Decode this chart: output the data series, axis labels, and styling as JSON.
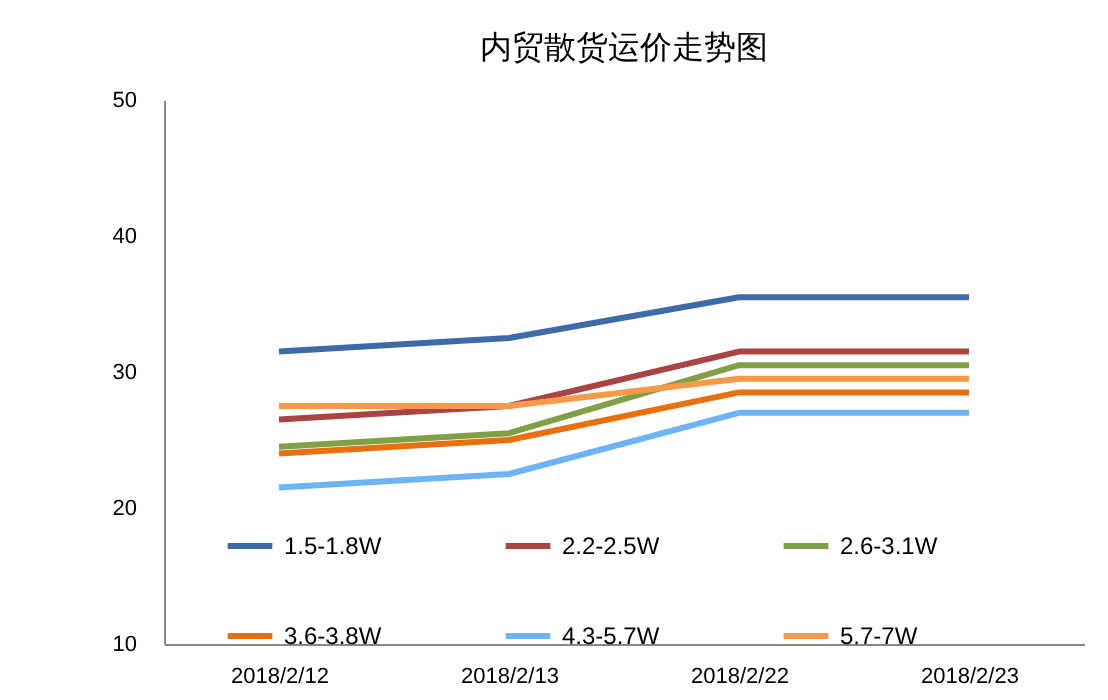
{
  "chart_data": {
    "type": "line",
    "title": "内贸散货运价走势图",
    "categories": [
      "2018/2/12",
      "2018/2/13",
      "2018/2/22",
      "2018/2/23"
    ],
    "series": [
      {
        "name": "1.5-1.8W",
        "color": "#3e6aa8",
        "values": [
          31.5,
          32.5,
          35.5,
          35.5
        ]
      },
      {
        "name": "2.2-2.5W",
        "color": "#a94442",
        "values": [
          26.5,
          27.5,
          31.5,
          31.5
        ]
      },
      {
        "name": "2.6-3.1W",
        "color": "#7fa045",
        "values": [
          24.5,
          25.5,
          30.5,
          30.5
        ]
      },
      {
        "name": "3.6-3.8W",
        "color": "#e8700e",
        "values": [
          24,
          25,
          28.5,
          28.5
        ]
      },
      {
        "name": "4.3-5.7W",
        "color": "#6cb4f5",
        "values": [
          21.5,
          22.5,
          27,
          27
        ]
      },
      {
        "name": "5.7-7W",
        "color": "#f59a4a",
        "values": [
          27.5,
          27.5,
          29.5,
          29.5
        ]
      }
    ],
    "ylim": [
      10,
      50
    ],
    "yticks": [
      10,
      20,
      30,
      40,
      50
    ],
    "grid": false,
    "legend": "bottom",
    "marker": "none",
    "line_style": "solid"
  }
}
